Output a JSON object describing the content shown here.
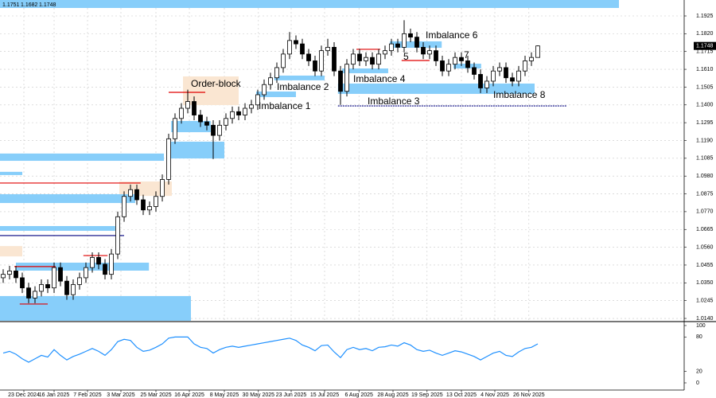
{
  "chart_data": {
    "type": "candlestick",
    "header": {
      "high_label": "1.1751",
      "low_label": "1.1682",
      "close_label": "1.1748"
    },
    "xlim": [
      -0.5,
      107
    ],
    "xticks": [
      {
        "value": 3.25,
        "label": "23 Dec 2024"
      },
      {
        "value": 8,
        "label": "16 Jan 2025"
      },
      {
        "value": 13.25,
        "label": "7 Feb 2025"
      },
      {
        "value": 18.5,
        "label": "3 Mar 2025"
      },
      {
        "value": 24,
        "label": "25 Mar 2025"
      },
      {
        "value": 29.25,
        "label": "16 Apr 2025"
      },
      {
        "value": 34.75,
        "label": "8 May 2025"
      },
      {
        "value": 40.1,
        "label": "30 May 2025"
      },
      {
        "value": 45.25,
        "label": "23 Jun 2025"
      },
      {
        "value": 50.5,
        "label": "15 Jul 2025"
      },
      {
        "value": 55.9,
        "label": "6 Aug 2025"
      },
      {
        "value": 61.25,
        "label": "28 Aug 2025"
      },
      {
        "value": 66.6,
        "label": "19 Sep 2025"
      },
      {
        "value": 72,
        "label": "13 Oct 2025"
      },
      {
        "value": 77.25,
        "label": "4 Nov 2025"
      },
      {
        "value": 82.6,
        "label": "26 Nov 2025"
      }
    ],
    "ylim": [
      1.0126,
      1.2019
    ],
    "yticks": [
      1.1925,
      {
        "value": 1.182,
        "label": "1.1820"
      },
      1.1715,
      {
        "value": 1.161,
        "label": "1.1610"
      },
      1.1505,
      {
        "value": 1.14,
        "label": "1.1400"
      },
      1.1295,
      {
        "value": 1.119,
        "label": "1.1190"
      },
      1.1085,
      {
        "value": 1.098,
        "label": "1.0980"
      },
      1.0875,
      {
        "value": 1.077,
        "label": "1.0770"
      },
      1.0665,
      {
        "value": 1.056,
        "label": "1.0560"
      },
      1.0455,
      {
        "value": 1.035,
        "label": "1.0350"
      },
      1.0245,
      {
        "value": 1.014,
        "label": "1.0140"
      }
    ],
    "grid": true,
    "up_color": "#ffffff",
    "down_color": "#000000",
    "candles": {
      "open": [
        1.038,
        1.04,
        1.042,
        1.038,
        1.032,
        1.026,
        1.03,
        1.034,
        1.032,
        1.044,
        1.036,
        1.028,
        1.034,
        1.038,
        1.044,
        1.05,
        1.046,
        1.04,
        1.052,
        1.074,
        1.086,
        1.09,
        1.084,
        1.078,
        1.08,
        1.086,
        1.096,
        1.12,
        1.132,
        1.138,
        1.142,
        1.134,
        1.13,
        1.128,
        1.122,
        1.128,
        1.132,
        1.136,
        1.134,
        1.138,
        1.14,
        1.146,
        1.152,
        1.156,
        1.162,
        1.17,
        1.178,
        1.176,
        1.17,
        1.166,
        1.16,
        1.172,
        1.174,
        1.16,
        1.148,
        1.164,
        1.17,
        1.166,
        1.168,
        1.164,
        1.17,
        1.172,
        1.176,
        1.174,
        1.182,
        1.18,
        1.174,
        1.17,
        1.172,
        1.166,
        1.16,
        1.164,
        1.168,
        1.166,
        1.162,
        1.158,
        1.15,
        1.154,
        1.16,
        1.162,
        1.156,
        1.154,
        1.16,
        1.166,
        1.168
      ],
      "high": [
        1.043,
        1.045,
        1.045,
        1.041,
        1.035,
        1.033,
        1.037,
        1.037,
        1.047,
        1.047,
        1.039,
        1.037,
        1.041,
        1.047,
        1.053,
        1.053,
        1.049,
        1.055,
        1.077,
        1.089,
        1.093,
        1.093,
        1.087,
        1.083,
        1.089,
        1.099,
        1.123,
        1.135,
        1.141,
        1.149,
        1.145,
        1.137,
        1.133,
        1.131,
        1.131,
        1.135,
        1.139,
        1.139,
        1.141,
        1.143,
        1.149,
        1.155,
        1.159,
        1.165,
        1.173,
        1.183,
        1.181,
        1.179,
        1.173,
        1.169,
        1.175,
        1.179,
        1.177,
        1.163,
        1.167,
        1.173,
        1.173,
        1.171,
        1.171,
        1.173,
        1.175,
        1.179,
        1.179,
        1.19,
        1.185,
        1.183,
        1.177,
        1.175,
        1.175,
        1.169,
        1.167,
        1.171,
        1.171,
        1.169,
        1.165,
        1.161,
        1.157,
        1.163,
        1.165,
        1.165,
        1.159,
        1.163,
        1.169,
        1.171,
        1.1751
      ],
      "low": [
        1.035,
        1.037,
        1.035,
        1.029,
        1.023,
        1.023,
        1.027,
        1.029,
        1.029,
        1.033,
        1.025,
        1.025,
        1.031,
        1.035,
        1.041,
        1.043,
        1.037,
        1.037,
        1.049,
        1.071,
        1.083,
        1.081,
        1.075,
        1.075,
        1.077,
        1.083,
        1.093,
        1.117,
        1.129,
        1.135,
        1.131,
        1.127,
        1.125,
        1.108,
        1.119,
        1.125,
        1.129,
        1.131,
        1.131,
        1.135,
        1.137,
        1.143,
        1.149,
        1.153,
        1.159,
        1.167,
        1.173,
        1.167,
        1.163,
        1.157,
        1.157,
        1.169,
        1.157,
        1.14,
        1.145,
        1.161,
        1.163,
        1.163,
        1.161,
        1.161,
        1.167,
        1.169,
        1.171,
        1.171,
        1.177,
        1.171,
        1.167,
        1.167,
        1.163,
        1.157,
        1.157,
        1.161,
        1.163,
        1.159,
        1.155,
        1.147,
        1.147,
        1.151,
        1.157,
        1.153,
        1.151,
        1.151,
        1.157,
        1.163,
        1.1682
      ],
      "close": [
        1.04,
        1.042,
        1.038,
        1.032,
        1.026,
        1.03,
        1.034,
        1.032,
        1.044,
        1.036,
        1.028,
        1.034,
        1.038,
        1.044,
        1.05,
        1.046,
        1.04,
        1.052,
        1.074,
        1.086,
        1.09,
        1.084,
        1.078,
        1.08,
        1.086,
        1.096,
        1.12,
        1.132,
        1.138,
        1.142,
        1.134,
        1.13,
        1.128,
        1.122,
        1.128,
        1.132,
        1.136,
        1.134,
        1.138,
        1.14,
        1.146,
        1.152,
        1.156,
        1.162,
        1.17,
        1.178,
        1.176,
        1.17,
        1.166,
        1.16,
        1.172,
        1.174,
        1.16,
        1.148,
        1.164,
        1.17,
        1.166,
        1.168,
        1.164,
        1.17,
        1.172,
        1.176,
        1.174,
        1.182,
        1.18,
        1.174,
        1.17,
        1.172,
        1.166,
        1.16,
        1.164,
        1.168,
        1.166,
        1.162,
        1.158,
        1.15,
        1.154,
        1.16,
        1.162,
        1.156,
        1.154,
        1.16,
        1.166,
        1.168,
        1.1748
      ]
    },
    "zones": [
      {
        "x": [
          -0.5,
          96.75
        ],
        "y": [
          1.1972,
          1.2019
        ],
        "color": "#87cefa"
      },
      {
        "x": [
          28.25,
          37
        ],
        "y": [
          1.1399,
          1.1568
        ],
        "color": "#fae6d2"
      },
      {
        "x": [
          18.25,
          26.5
        ],
        "y": [
          1.0863,
          1.0948
        ],
        "color": "#fae6d2"
      },
      {
        "x": [
          -0.5,
          3
        ],
        "y": [
          1.0506,
          1.0567
        ],
        "color": "#fae6d2"
      },
      {
        "x": [
          -0.5,
          25.25
        ],
        "y": [
          1.107,
          1.1113
        ],
        "color": "#87cefa"
      },
      {
        "x": [
          -0.5,
          3
        ],
        "y": [
          1.0986,
          1.1005
        ],
        "color": "#87cefa"
      },
      {
        "x": [
          -0.5,
          20.75
        ],
        "y": [
          1.0821,
          1.0873
        ],
        "color": "#87cefa"
      },
      {
        "x": [
          -0.5,
          17.6
        ],
        "y": [
          1.0657,
          1.0685
        ],
        "color": "#87cefa"
      },
      {
        "x": [
          2,
          22.9
        ],
        "y": [
          1.0422,
          1.0469
        ],
        "color": "#87cefa"
      },
      {
        "x": [
          -0.5,
          29.5
        ],
        "y": [
          1.0126,
          1.0272
        ],
        "color": "#87cefa"
      },
      {
        "x": [
          25.75,
          34.75
        ],
        "y": [
          1.1084,
          1.1183
        ],
        "color": "#87cefa"
      },
      {
        "x": [
          26.4,
          32.6
        ],
        "y": [
          1.1239,
          1.1305
        ],
        "color": "#87cefa"
      },
      {
        "x": [
          39.75,
          46
        ],
        "y": [
          1.1446,
          1.1479
        ],
        "color": "#87cefa"
      },
      {
        "x": [
          42.6,
          50.5
        ],
        "y": [
          1.1545,
          1.1573
        ],
        "color": "#87cefa"
      },
      {
        "x": [
          53.25,
          60.5
        ],
        "y": [
          1.1587,
          1.1615
        ],
        "color": "#87cefa"
      },
      {
        "x": [
          52.6,
          83.5
        ],
        "y": [
          1.1465,
          1.1526
        ],
        "color": "#87cefa"
      },
      {
        "x": [
          60.75,
          68.9
        ],
        "y": [
          1.1737,
          1.1775
        ],
        "color": "#87cefa"
      },
      {
        "x": [
          70.75,
          75.1
        ],
        "y": [
          1.1615,
          1.1643
        ],
        "color": "#87cefa"
      }
    ],
    "lines": [
      {
        "x": [
          26,
          31.75
        ],
        "y": 1.1474,
        "color": "#e00000",
        "dashed": false
      },
      {
        "x": [
          -0.5,
          21.6
        ],
        "y": 1.0939,
        "color": "#e00000",
        "dashed": false
      },
      {
        "x": [
          -0.5,
          19
        ],
        "y": 1.0629,
        "color": "#000080",
        "dashed": false
      },
      {
        "x": [
          1.75,
          8.25
        ],
        "y": 1.0446,
        "color": "#e00000",
        "dashed": false
      },
      {
        "x": [
          12.6,
          16.4
        ],
        "y": 1.0511,
        "color": "#e00000",
        "dashed": false
      },
      {
        "x": [
          55.5,
          59.25
        ],
        "y": 1.1728,
        "color": "#e00000",
        "dashed": false
      },
      {
        "x": [
          62.6,
          67
        ],
        "y": 1.1662,
        "color": "#e00000",
        "dashed": false
      },
      {
        "x": [
          52.6,
          88.5
        ],
        "y": 1.1394,
        "color": "#000080",
        "dashed": true
      },
      {
        "x": [
          2.6,
          7
        ],
        "y": 1.0225,
        "color": "#e00000",
        "dashed": false
      }
    ],
    "annotations": [
      "Order-block",
      "Imbalance 1",
      "Imbalance 2",
      "Imbalance 3",
      "Imbalance 4",
      "5",
      "Imbalance 6",
      "7",
      "Imbalance 8"
    ],
    "indicator": {
      "type": "line",
      "color": "#1e90ff",
      "ylim": [
        -12.5,
        105.5
      ],
      "yticks": [
        100,
        80,
        20,
        0
      ],
      "values": [
        52,
        55,
        50,
        42,
        36,
        42,
        48,
        45,
        58,
        48,
        40,
        46,
        50,
        55,
        60,
        55,
        48,
        58,
        72,
        76,
        74,
        62,
        55,
        57,
        62,
        68,
        78,
        80,
        80,
        80,
        68,
        62,
        60,
        52,
        58,
        62,
        64,
        62,
        64,
        66,
        68,
        70,
        72,
        74,
        76,
        78,
        74,
        66,
        62,
        56,
        65,
        66,
        54,
        44,
        58,
        62,
        58,
        60,
        56,
        62,
        63,
        66,
        64,
        70,
        66,
        58,
        55,
        57,
        52,
        48,
        52,
        56,
        54,
        50,
        46,
        40,
        46,
        52,
        55,
        48,
        46,
        54,
        60,
        62,
        68
      ]
    }
  }
}
